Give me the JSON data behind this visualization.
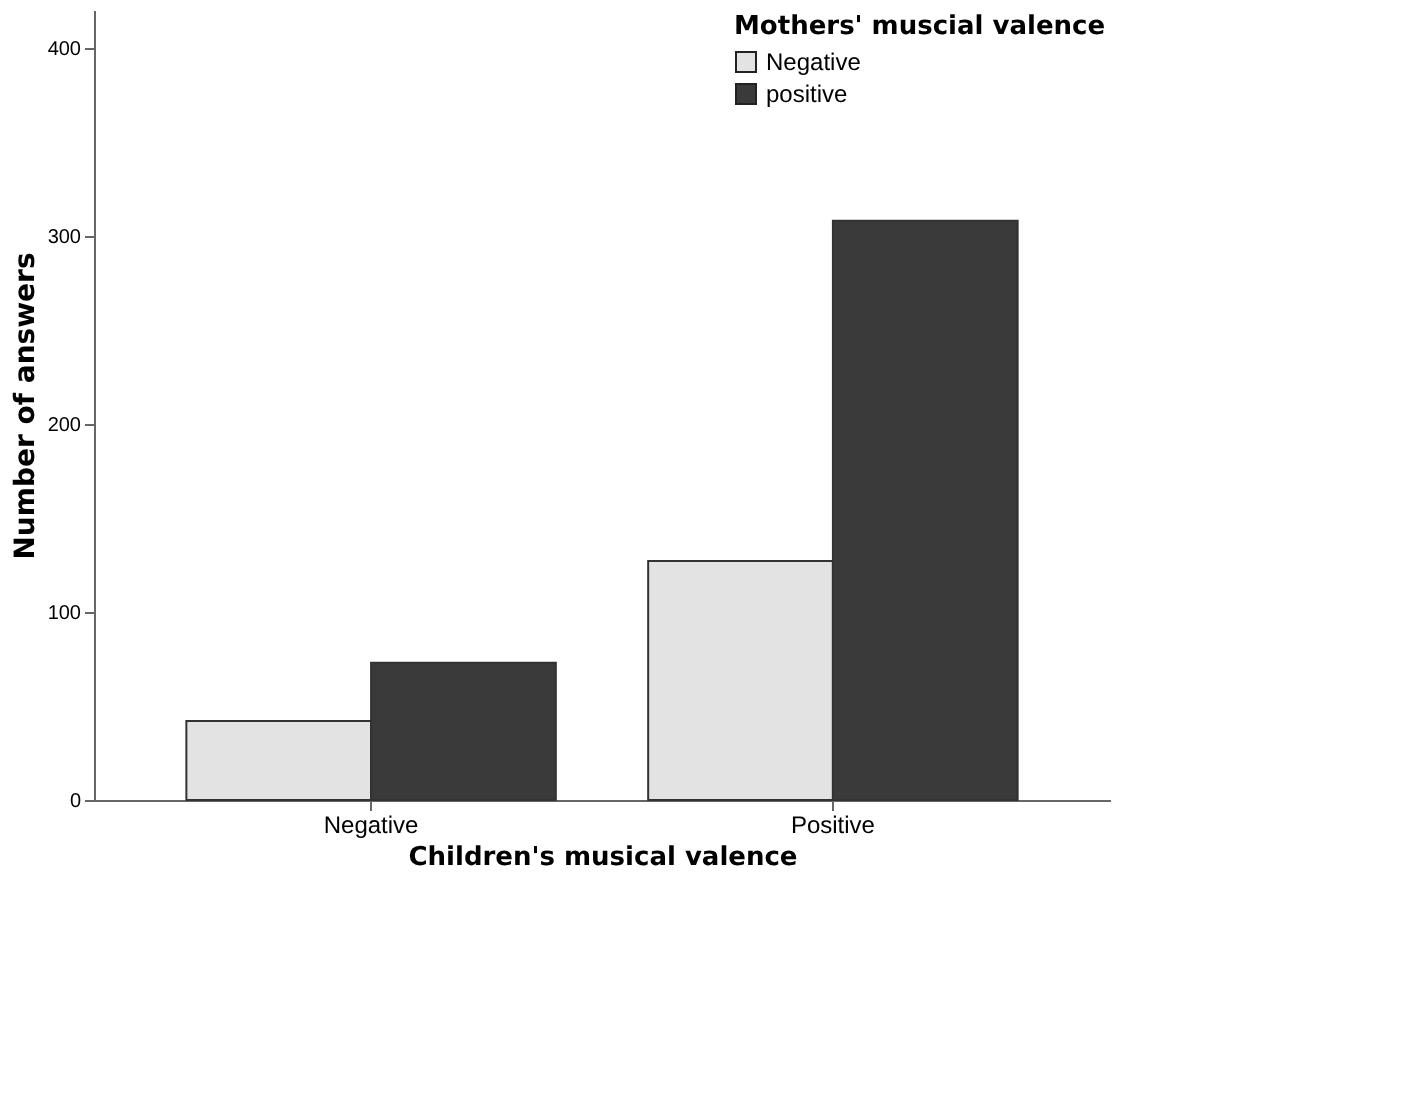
{
  "chart_data": {
    "type": "bar",
    "xlabel": "Children's musical valence",
    "ylabel": "Number of answers",
    "legend_title": "Mothers' muscial valence",
    "categories": [
      "Negative",
      "Positive"
    ],
    "series": [
      {
        "name": "Negative",
        "color": "#e3e3e3",
        "values": [
          42,
          127
        ]
      },
      {
        "name": "positive",
        "color": "#3a3a3a",
        "values": [
          73,
          308
        ]
      }
    ],
    "ylim": [
      0,
      420
    ],
    "yticks": [
      0,
      100,
      200,
      300,
      400
    ],
    "grid": false,
    "legend": "top right"
  }
}
